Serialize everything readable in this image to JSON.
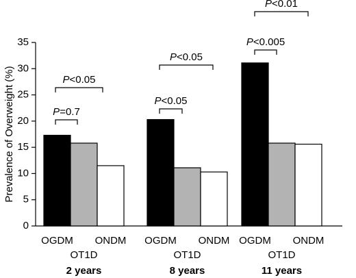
{
  "chart_data": {
    "type": "bar",
    "y_label": "Prevalence of Overweight (%)",
    "categories": [
      "2 years",
      "8 years",
      "11 years"
    ],
    "series": [
      {
        "name": "OGDM",
        "color": "#000000",
        "values": [
          17.3,
          20.3,
          31.1
        ]
      },
      {
        "name": "OT1D",
        "color": "#b3b3b3",
        "values": [
          15.8,
          11.1,
          15.8
        ]
      },
      {
        "name": "ONDM",
        "color": "#ffffff",
        "values": [
          11.5,
          10.3,
          15.6
        ]
      }
    ],
    "ylim": [
      0,
      35
    ],
    "yticks": [
      0,
      5,
      10,
      15,
      20,
      25,
      30,
      35
    ],
    "annotations": [
      "P=0.7",
      "P<0.05",
      "P<0.05",
      "P<0.05",
      "P<0.005",
      "P<0.01"
    ]
  }
}
